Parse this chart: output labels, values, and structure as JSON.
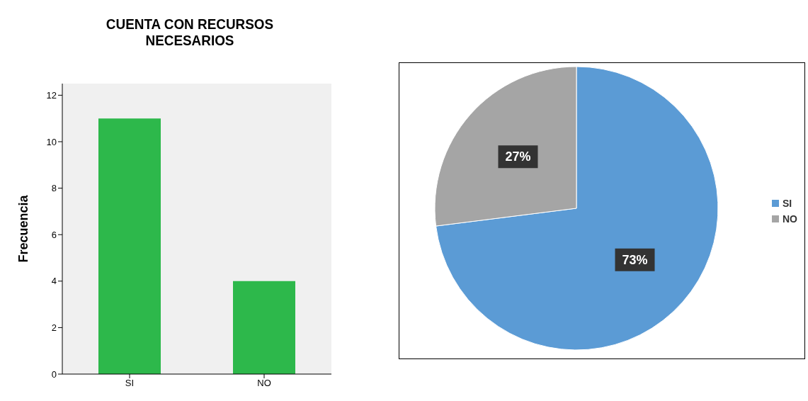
{
  "chart_data": [
    {
      "type": "bar",
      "title": "CUENTA CON RECURSOS NECESARIOS",
      "ylabel": "Frecuencia",
      "categories": [
        "SI",
        "NO"
      ],
      "values": [
        11,
        4
      ],
      "color": "#2db84b",
      "ylim": [
        0,
        12.5
      ],
      "yticks": [
        0,
        2,
        4,
        6,
        8,
        10,
        12
      ],
      "grid": false
    },
    {
      "type": "pie",
      "categories": [
        "SI",
        "NO"
      ],
      "values": [
        73,
        27
      ],
      "colors": [
        "#5b9bd5",
        "#a5a5a5"
      ],
      "value_labels": [
        "73%",
        "27%"
      ],
      "legend": "right"
    }
  ]
}
